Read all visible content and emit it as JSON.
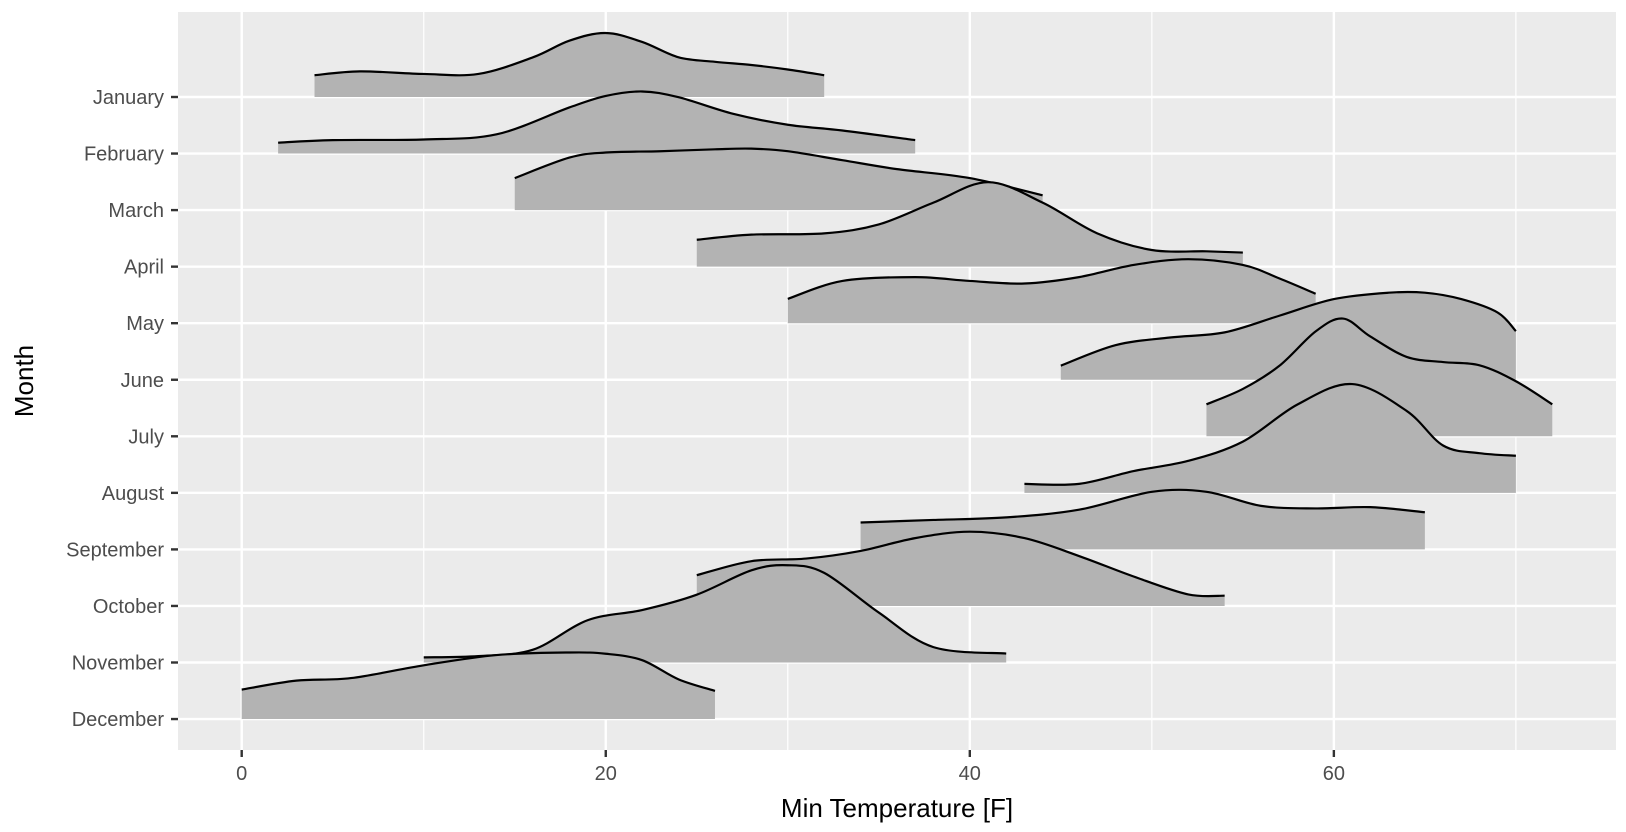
{
  "chart_data": {
    "type": "ridgeline",
    "xlabel": "Min Temperature [F]",
    "ylabel": "Month",
    "xlim": [
      -3.5,
      75.5
    ],
    "x_ticks": [
      0,
      20,
      40,
      60
    ],
    "x_minor_ticks": [
      10,
      30,
      50,
      70
    ],
    "grid": true,
    "fill_color": "#b3b3b3",
    "panel_color": "#ebebeb",
    "categories": [
      "January",
      "February",
      "March",
      "April",
      "May",
      "June",
      "July",
      "August",
      "September",
      "October",
      "November",
      "December"
    ],
    "series": [
      {
        "name": "January",
        "x": [
          4,
          6.5,
          10,
          13,
          16,
          18,
          20,
          22,
          24,
          26,
          28,
          30,
          32
        ],
        "density": [
          0.34,
          0.4,
          0.36,
          0.36,
          0.62,
          0.88,
          1.0,
          0.86,
          0.62,
          0.55,
          0.5,
          0.43,
          0.34
        ]
      },
      {
        "name": "February",
        "x": [
          2,
          5,
          10,
          14,
          18,
          20,
          22,
          24,
          27,
          30,
          33,
          37
        ],
        "density": [
          0.17,
          0.21,
          0.22,
          0.3,
          0.72,
          0.9,
          0.97,
          0.88,
          0.62,
          0.45,
          0.36,
          0.21
        ]
      },
      {
        "name": "March",
        "x": [
          15,
          18,
          20,
          23,
          26,
          28,
          30,
          33,
          36,
          40,
          44
        ],
        "density": [
          0.5,
          0.82,
          0.9,
          0.92,
          0.95,
          0.96,
          0.92,
          0.78,
          0.64,
          0.5,
          0.23
        ]
      },
      {
        "name": "April",
        "x": [
          25,
          28,
          32,
          35,
          38,
          41,
          44,
          47,
          50,
          53,
          55
        ],
        "density": [
          0.42,
          0.5,
          0.52,
          0.66,
          1.0,
          1.32,
          1.0,
          0.52,
          0.26,
          0.24,
          0.22
        ]
      },
      {
        "name": "May",
        "x": [
          30,
          33,
          37,
          40,
          43,
          46,
          49,
          52,
          55,
          57,
          59
        ],
        "density": [
          0.38,
          0.66,
          0.72,
          0.66,
          0.62,
          0.72,
          0.91,
          1.0,
          0.91,
          0.7,
          0.46
        ]
      },
      {
        "name": "June",
        "x": [
          45,
          48,
          51,
          54,
          57,
          60,
          63,
          65,
          67,
          69,
          70
        ],
        "density": [
          0.22,
          0.54,
          0.66,
          0.74,
          1.0,
          1.26,
          1.36,
          1.36,
          1.26,
          1.05,
          0.76
        ]
      },
      {
        "name": "July",
        "x": [
          53,
          55,
          57,
          59,
          60.5,
          62,
          64,
          66,
          68,
          70,
          72
        ],
        "density": [
          0.5,
          0.74,
          1.1,
          1.64,
          1.84,
          1.56,
          1.24,
          1.16,
          1.11,
          0.86,
          0.5
        ]
      },
      {
        "name": "August",
        "x": [
          43,
          46,
          49,
          52,
          55,
          58,
          61,
          64,
          66,
          68,
          70
        ],
        "density": [
          0.14,
          0.14,
          0.34,
          0.5,
          0.8,
          1.38,
          1.7,
          1.28,
          0.74,
          0.62,
          0.58
        ]
      },
      {
        "name": "September",
        "x": [
          34,
          38,
          42,
          46,
          50,
          53,
          56,
          59,
          62,
          65
        ],
        "density": [
          0.42,
          0.46,
          0.5,
          0.62,
          0.9,
          0.9,
          0.68,
          0.64,
          0.66,
          0.58
        ]
      },
      {
        "name": "October",
        "x": [
          25,
          28,
          31,
          34,
          37,
          40,
          43,
          46,
          49,
          52,
          54
        ],
        "density": [
          0.48,
          0.7,
          0.74,
          0.86,
          1.06,
          1.16,
          1.06,
          0.78,
          0.46,
          0.18,
          0.16
        ]
      },
      {
        "name": "November",
        "x": [
          10,
          13,
          16,
          19,
          22,
          25,
          28,
          30,
          32,
          35,
          38,
          42
        ],
        "density": [
          0.08,
          0.1,
          0.2,
          0.66,
          0.82,
          1.06,
          1.44,
          1.52,
          1.4,
          0.78,
          0.24,
          0.14
        ]
      },
      {
        "name": "December",
        "x": [
          0,
          3,
          6,
          10,
          14,
          18,
          20,
          22,
          24,
          26
        ],
        "density": [
          0.46,
          0.6,
          0.64,
          0.84,
          1.0,
          1.04,
          1.02,
          0.92,
          0.62,
          0.44
        ]
      }
    ]
  }
}
